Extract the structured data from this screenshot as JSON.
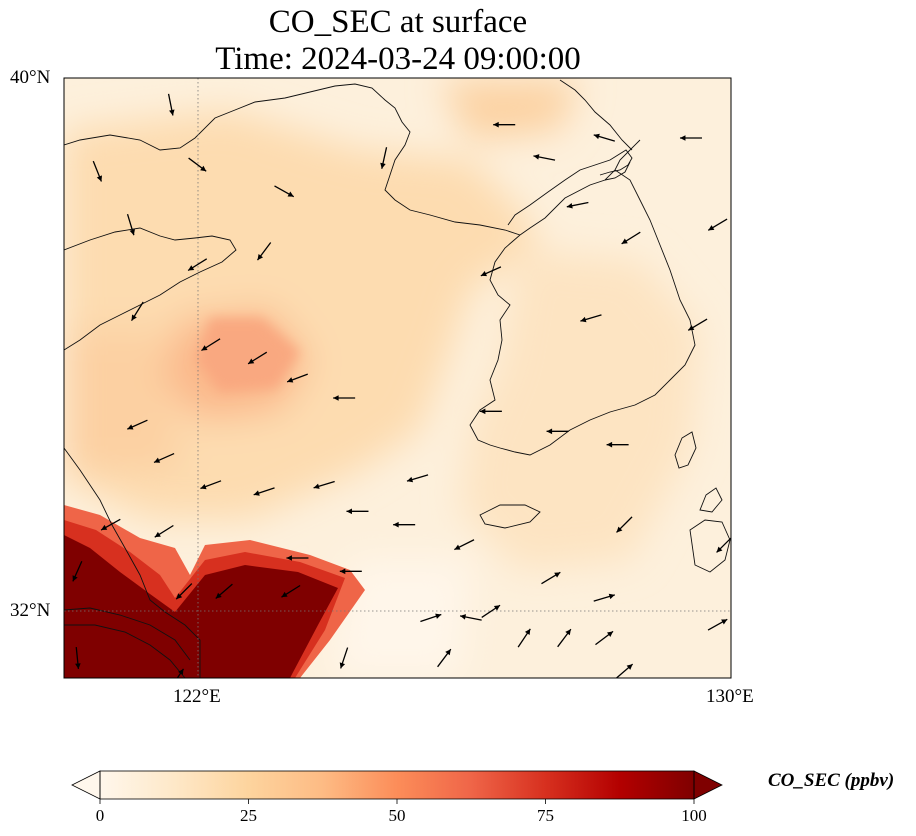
{
  "title": {
    "line1": "CO_SEC at surface",
    "line2": "Time: 2024-03-24 09:00:00"
  },
  "axes": {
    "lat_labels": [
      "40°N",
      "32°N"
    ],
    "lon_labels": [
      "122°E",
      "130°E"
    ],
    "lon_range": [
      120,
      130
    ],
    "lat_range": [
      31,
      40
    ],
    "gridlines": {
      "lons": [
        122
      ],
      "lats": [
        32
      ],
      "style": "dotted"
    }
  },
  "colorbar": {
    "label": "CO_SEC (ppbv)",
    "ticks": [
      "0",
      "25",
      "50",
      "75",
      "100"
    ],
    "range": [
      0,
      100
    ],
    "extend": "both",
    "colormap": "OrRd",
    "colors": [
      "#fff7ec",
      "#fee8c8",
      "#fdd49e",
      "#fdbb84",
      "#fc8d59",
      "#ef6548",
      "#d7301f",
      "#b30000",
      "#7f0000"
    ]
  },
  "field": {
    "variable": "CO_SEC",
    "units": "ppbv",
    "description": "Surface field; background 10-30 ppbv over Yellow Sea and Korea, local maximum ~45 ppbv near 123E 35N, saturated >100 ppbv plume over the Yangtze delta region south-west of 32.5N."
  },
  "wind_vectors": [
    {
      "lon": 121.6,
      "lat": 39.6,
      "u": 0.2,
      "v": -1.0
    },
    {
      "lon": 120.5,
      "lat": 38.6,
      "u": 0.4,
      "v": -1.0
    },
    {
      "lon": 121.0,
      "lat": 37.8,
      "u": 0.3,
      "v": -1.0
    },
    {
      "lon": 122.0,
      "lat": 38.7,
      "u": 0.8,
      "v": -0.6
    },
    {
      "lon": 123.3,
      "lat": 38.3,
      "u": 0.9,
      "v": -0.5
    },
    {
      "lon": 123.0,
      "lat": 37.4,
      "u": -0.6,
      "v": -0.8
    },
    {
      "lon": 122.0,
      "lat": 37.2,
      "u": -0.8,
      "v": -0.5
    },
    {
      "lon": 124.8,
      "lat": 38.8,
      "u": -0.2,
      "v": -0.9
    },
    {
      "lon": 126.6,
      "lat": 39.3,
      "u": -1.0,
      "v": 0.0
    },
    {
      "lon": 127.2,
      "lat": 38.8,
      "u": -1.0,
      "v": 0.2
    },
    {
      "lon": 128.1,
      "lat": 39.1,
      "u": -1.0,
      "v": 0.3
    },
    {
      "lon": 129.4,
      "lat": 39.1,
      "u": -1.0,
      "v": 0.0
    },
    {
      "lon": 127.7,
      "lat": 38.1,
      "u": -1.0,
      "v": -0.2
    },
    {
      "lon": 128.5,
      "lat": 37.6,
      "u": -0.8,
      "v": -0.5
    },
    {
      "lon": 129.8,
      "lat": 37.8,
      "u": -1.0,
      "v": -0.6
    },
    {
      "lon": 126.4,
      "lat": 37.1,
      "u": -0.9,
      "v": -0.4
    },
    {
      "lon": 127.9,
      "lat": 36.4,
      "u": -1.0,
      "v": -0.3
    },
    {
      "lon": 129.5,
      "lat": 36.3,
      "u": -1.0,
      "v": -0.6
    },
    {
      "lon": 121.1,
      "lat": 36.5,
      "u": -0.5,
      "v": -0.8
    },
    {
      "lon": 122.2,
      "lat": 36.0,
      "u": -0.8,
      "v": -0.5
    },
    {
      "lon": 122.9,
      "lat": 35.8,
      "u": -0.8,
      "v": -0.5
    },
    {
      "lon": 123.5,
      "lat": 35.5,
      "u": -0.8,
      "v": -0.3
    },
    {
      "lon": 124.2,
      "lat": 35.2,
      "u": -1.0,
      "v": 0.0
    },
    {
      "lon": 126.4,
      "lat": 35.0,
      "u": -1.0,
      "v": 0.0
    },
    {
      "lon": 127.4,
      "lat": 34.7,
      "u": -1.0,
      "v": 0.0
    },
    {
      "lon": 128.3,
      "lat": 34.5,
      "u": -1.0,
      "v": 0.0
    },
    {
      "lon": 121.1,
      "lat": 34.8,
      "u": -0.9,
      "v": -0.4
    },
    {
      "lon": 121.5,
      "lat": 34.3,
      "u": -0.9,
      "v": -0.4
    },
    {
      "lon": 122.2,
      "lat": 33.9,
      "u": -0.8,
      "v": -0.3
    },
    {
      "lon": 123.0,
      "lat": 33.8,
      "u": -0.9,
      "v": -0.3
    },
    {
      "lon": 123.9,
      "lat": 33.9,
      "u": -1.0,
      "v": -0.3
    },
    {
      "lon": 125.3,
      "lat": 34.0,
      "u": -1.0,
      "v": -0.3
    },
    {
      "lon": 120.7,
      "lat": 33.3,
      "u": -0.9,
      "v": -0.5
    },
    {
      "lon": 121.5,
      "lat": 33.2,
      "u": -0.8,
      "v": -0.5
    },
    {
      "lon": 124.4,
      "lat": 33.5,
      "u": -1.0,
      "v": 0.0
    },
    {
      "lon": 125.1,
      "lat": 33.3,
      "u": -1.0,
      "v": 0.0
    },
    {
      "lon": 126.0,
      "lat": 33.0,
      "u": -0.8,
      "v": -0.4
    },
    {
      "lon": 128.4,
      "lat": 33.3,
      "u": -0.6,
      "v": -0.6
    },
    {
      "lon": 129.9,
      "lat": 33.0,
      "u": -0.6,
      "v": -0.6
    },
    {
      "lon": 123.5,
      "lat": 32.8,
      "u": -1.0,
      "v": 0.0
    },
    {
      "lon": 124.3,
      "lat": 32.6,
      "u": -1.0,
      "v": 0.0
    },
    {
      "lon": 121.8,
      "lat": 32.3,
      "u": -0.6,
      "v": -0.6
    },
    {
      "lon": 122.4,
      "lat": 32.3,
      "u": -0.7,
      "v": -0.6
    },
    {
      "lon": 123.4,
      "lat": 32.3,
      "u": -0.8,
      "v": -0.5
    },
    {
      "lon": 126.1,
      "lat": 31.9,
      "u": -1.0,
      "v": 0.2
    },
    {
      "lon": 127.3,
      "lat": 32.5,
      "u": 1.0,
      "v": 0.6
    },
    {
      "lon": 128.1,
      "lat": 32.2,
      "u": 1.0,
      "v": 0.3
    },
    {
      "lon": 125.5,
      "lat": 31.9,
      "u": 0.9,
      "v": 0.3
    },
    {
      "lon": 126.4,
      "lat": 32.0,
      "u": 0.9,
      "v": 0.6
    },
    {
      "lon": 126.9,
      "lat": 31.6,
      "u": 0.6,
      "v": 0.9
    },
    {
      "lon": 127.5,
      "lat": 31.6,
      "u": 0.6,
      "v": 0.8
    },
    {
      "lon": 128.1,
      "lat": 31.6,
      "u": 0.8,
      "v": 0.6
    },
    {
      "lon": 128.4,
      "lat": 31.1,
      "u": 0.7,
      "v": 0.6
    },
    {
      "lon": 129.8,
      "lat": 31.8,
      "u": 0.9,
      "v": 0.5
    },
    {
      "lon": 121.7,
      "lat": 31.0,
      "u": 0.4,
      "v": 0.6
    },
    {
      "lon": 124.2,
      "lat": 31.3,
      "u": -0.3,
      "v": -0.9
    },
    {
      "lon": 125.7,
      "lat": 31.3,
      "u": 0.6,
      "v": 0.8
    },
    {
      "lon": 120.2,
      "lat": 31.3,
      "u": 0.1,
      "v": -1.0
    },
    {
      "lon": 120.2,
      "lat": 32.6,
      "u": -0.4,
      "v": -0.9
    }
  ]
}
